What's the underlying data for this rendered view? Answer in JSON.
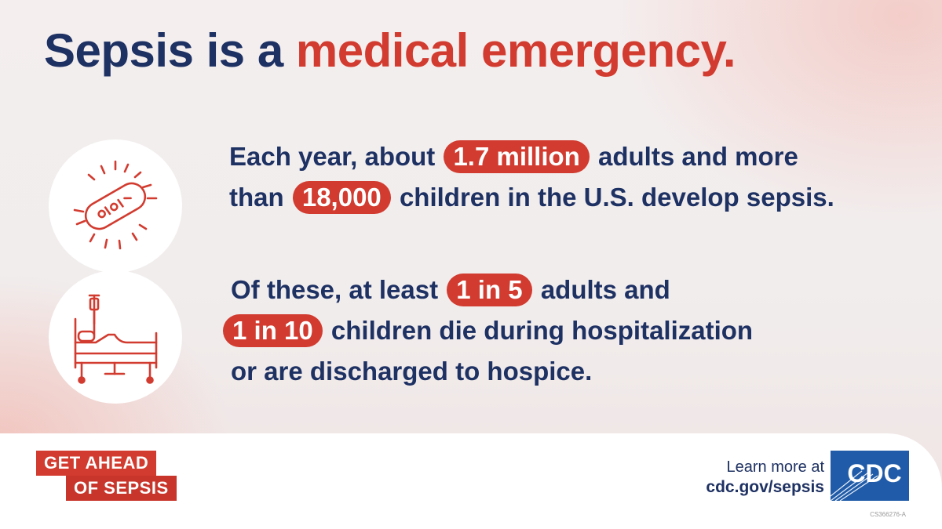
{
  "headline": {
    "part1": "Sepsis is a ",
    "part2": "medical emergency."
  },
  "colors": {
    "navy": "#1e3163",
    "red": "#d23b2f",
    "white": "#ffffff"
  },
  "icons": {
    "stat1": "bacteria-icon",
    "stat2": "hospital-bed-icon"
  },
  "stat1": {
    "l1_pre": "Each year, about",
    "l1_pill": "1.7 million",
    "l1_post": "adults and more",
    "l2_pre": "than",
    "l2_pill": "18,000",
    "l2_post": "children in the U.S. develop sepsis."
  },
  "stat2": {
    "l1_pre": "Of these, at least",
    "l1_pill": "1 in 5",
    "l1_post": "adults and",
    "l2_pill": "1 in 10",
    "l2_post": "children die during hospitalization",
    "l3": "or are discharged to hospice."
  },
  "footer": {
    "badge_line1": "GET AHEAD",
    "badge_line2": "OF SEPSIS",
    "learn_line1": "Learn more at",
    "learn_line2": "cdc.gov/sepsis",
    "logo_text": "CDC",
    "code": "CS366276-A"
  }
}
